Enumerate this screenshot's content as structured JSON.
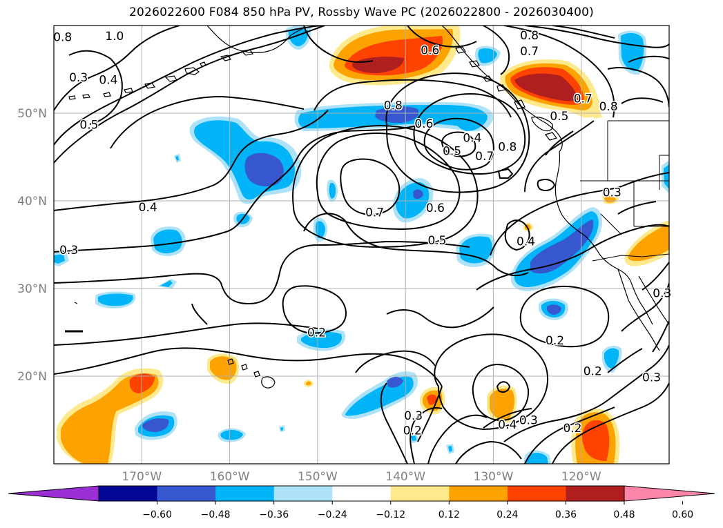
{
  "title": "2026022600 F084 850 hPa PV, Rossby Wave PC (2026022800 - 2026030400)",
  "map": {
    "lon_range": [
      -180,
      -110
    ],
    "lat_range": [
      10,
      60
    ],
    "lat_ticks": [
      {
        "value": 50,
        "label": "50°N"
      },
      {
        "value": 40,
        "label": "40°N"
      },
      {
        "value": 30,
        "label": "30°N"
      },
      {
        "value": 20,
        "label": "20°N"
      }
    ],
    "lon_ticks": [
      {
        "value": -170,
        "label": "170°W"
      },
      {
        "value": -160,
        "label": "160°W"
      },
      {
        "value": -150,
        "label": "150°W"
      },
      {
        "value": -140,
        "label": "140°W"
      },
      {
        "value": -130,
        "label": "130°W"
      },
      {
        "value": -120,
        "label": "120°W"
      }
    ],
    "gridlines": true,
    "contour_labels": [
      {
        "text": "0.8",
        "lon": -179.0,
        "lat": 58.7
      },
      {
        "text": "1.0",
        "lon": -173.1,
        "lat": 58.8
      },
      {
        "text": "0.3",
        "lon": -177.2,
        "lat": 54.1
      },
      {
        "text": "0.4",
        "lon": -173.8,
        "lat": 53.8
      },
      {
        "text": "0.5",
        "lon": -176.0,
        "lat": 48.7
      },
      {
        "text": "0.8",
        "lon": -125.9,
        "lat": 58.9
      },
      {
        "text": "0.7",
        "lon": -125.9,
        "lat": 57.1
      },
      {
        "text": "0.6",
        "lon": -137.2,
        "lat": 57.2
      },
      {
        "text": "0.8",
        "lon": -141.4,
        "lat": 50.9
      },
      {
        "text": "0.6",
        "lon": -137.9,
        "lat": 48.8
      },
      {
        "text": "0.4",
        "lon": -132.4,
        "lat": 47.2
      },
      {
        "text": "0.5",
        "lon": -134.7,
        "lat": 45.7
      },
      {
        "text": "0.7",
        "lon": -131.0,
        "lat": 45.1
      },
      {
        "text": "0.8",
        "lon": -128.4,
        "lat": 46.2
      },
      {
        "text": "0.5",
        "lon": -122.5,
        "lat": 49.7
      },
      {
        "text": "0.7",
        "lon": -119.8,
        "lat": 51.7
      },
      {
        "text": "0.8",
        "lon": -116.9,
        "lat": 50.8
      },
      {
        "text": "0.4",
        "lon": -169.3,
        "lat": 39.3
      },
      {
        "text": "0.7",
        "lon": -143.5,
        "lat": 38.7
      },
      {
        "text": "0.6",
        "lon": -136.6,
        "lat": 39.2
      },
      {
        "text": "0.3",
        "lon": -116.5,
        "lat": 41.0
      },
      {
        "text": "0.5",
        "lon": -136.4,
        "lat": 35.5
      },
      {
        "text": "0.4",
        "lon": -126.3,
        "lat": 35.4
      },
      {
        "text": "0.3",
        "lon": -178.3,
        "lat": 34.4
      },
      {
        "text": "0.3",
        "lon": -110.8,
        "lat": 29.5
      },
      {
        "text": "0.2",
        "lon": -150.1,
        "lat": 25.0
      },
      {
        "text": "0.2",
        "lon": -123.0,
        "lat": 24.1
      },
      {
        "text": "0.2",
        "lon": -118.7,
        "lat": 20.6
      },
      {
        "text": "0.3",
        "lon": -112.0,
        "lat": 19.9
      },
      {
        "text": "0.3",
        "lon": -139.1,
        "lat": 15.5
      },
      {
        "text": "0.4",
        "lon": -128.4,
        "lat": 14.5
      },
      {
        "text": "0.3",
        "lon": -126.0,
        "lat": 15.0
      },
      {
        "text": "0.2",
        "lon": -139.2,
        "lat": 13.8
      },
      {
        "text": "0.2",
        "lon": -121.0,
        "lat": 14.1
      }
    ]
  },
  "colorbar": {
    "colors": [
      "#9b2fd6",
      "#010694",
      "#3757d1",
      "#00b4f7",
      "#aee2f8",
      "#ffffff",
      "#fee98c",
      "#fda301",
      "#fe4201",
      "#b01f1f",
      "#fc86aa"
    ],
    "tick_labels": [
      "−0.60",
      "−0.48",
      "−0.36",
      "−0.24",
      "−0.12",
      "0.12",
      "0.24",
      "0.36",
      "0.48",
      "0.60"
    ],
    "extend": "both"
  }
}
